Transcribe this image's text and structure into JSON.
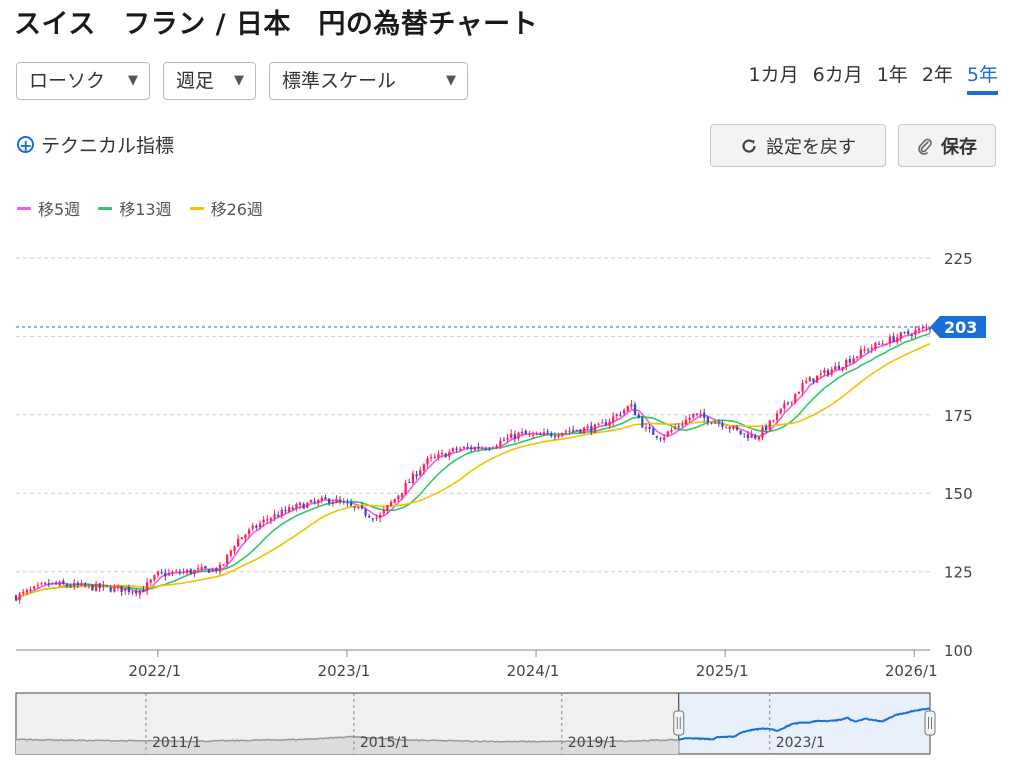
{
  "title": "スイス　フラン / 日本　円の為替チャート",
  "controls": {
    "chart_style": "ローソク",
    "interval": "週足",
    "scale": "標準スケール",
    "periods": [
      "1カ月",
      "6カ月",
      "1年",
      "2年",
      "5年"
    ],
    "active_period": "5年",
    "technical_label": "テクニカル指標",
    "reset_label": "設定を戻す",
    "save_label": "保存"
  },
  "legend": [
    {
      "label": "移5週",
      "color": "#e860e8"
    },
    {
      "label": "移13週",
      "color": "#2ec96a"
    },
    {
      "label": "移26週",
      "color": "#f5c000"
    }
  ],
  "colors": {
    "up": "#ff1f5a",
    "down": "#3d47c4",
    "accent": "#1a6fd6",
    "ma5": "#e860e8",
    "ma13": "#2ec96a",
    "ma26": "#f5c000"
  },
  "chart_data": {
    "type": "candlestick",
    "title": "スイス　フラン / 日本　円の為替チャート",
    "interval": "weekly",
    "y_ticks": [
      100,
      125,
      150,
      175,
      200,
      225
    ],
    "y_tick_labels": [
      "100",
      "125",
      "150",
      "175",
      "",
      "225"
    ],
    "ylim": [
      100,
      225
    ],
    "x_ticks": [
      "2022/1",
      "2023/1",
      "2024/1",
      "2025/1",
      "2026/1"
    ],
    "x_range": [
      "2021/4",
      "2026/2"
    ],
    "current_price": 203,
    "current_price_label": "203",
    "grid": true,
    "close_anchors": [
      {
        "date": "2021/4",
        "close": 117
      },
      {
        "date": "2021/6",
        "close": 121
      },
      {
        "date": "2021/9",
        "close": 120
      },
      {
        "date": "2021/12",
        "close": 119
      },
      {
        "date": "2022/1",
        "close": 124
      },
      {
        "date": "2022/3",
        "close": 125
      },
      {
        "date": "2022/5",
        "close": 126
      },
      {
        "date": "2022/6",
        "close": 135
      },
      {
        "date": "2022/8",
        "close": 142
      },
      {
        "date": "2022/10",
        "close": 146
      },
      {
        "date": "2022/12",
        "close": 148
      },
      {
        "date": "2023/1",
        "close": 146
      },
      {
        "date": "2023/3",
        "close": 142
      },
      {
        "date": "2023/4",
        "close": 148
      },
      {
        "date": "2023/6",
        "close": 160
      },
      {
        "date": "2023/8",
        "close": 164
      },
      {
        "date": "2023/10",
        "close": 165
      },
      {
        "date": "2023/12",
        "close": 169
      },
      {
        "date": "2024/1",
        "close": 168
      },
      {
        "date": "2024/3",
        "close": 170
      },
      {
        "date": "2024/5",
        "close": 171
      },
      {
        "date": "2024/7",
        "close": 178
      },
      {
        "date": "2024/8",
        "close": 170
      },
      {
        "date": "2024/9",
        "close": 168
      },
      {
        "date": "2024/11",
        "close": 175
      },
      {
        "date": "2025/1",
        "close": 172
      },
      {
        "date": "2025/2",
        "close": 169
      },
      {
        "date": "2025/3",
        "close": 168
      },
      {
        "date": "2025/4",
        "close": 173
      },
      {
        "date": "2025/6",
        "close": 185
      },
      {
        "date": "2025/8",
        "close": 190
      },
      {
        "date": "2025/10",
        "close": 196
      },
      {
        "date": "2025/12",
        "close": 200
      },
      {
        "date": "2026/2",
        "close": 203
      }
    ],
    "navigator": {
      "ticks": [
        "2011/1",
        "2015/1",
        "2019/1",
        "2023/1"
      ],
      "selected_range": [
        "2021/4",
        "2026/2"
      ]
    }
  }
}
